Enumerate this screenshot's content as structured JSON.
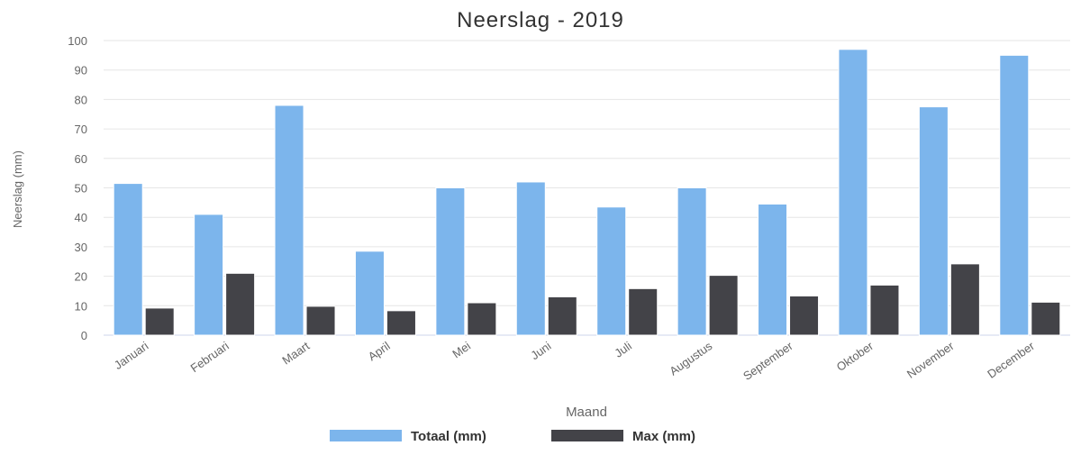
{
  "chart_data": {
    "type": "bar",
    "title": "Neerslag - 2019",
    "xlabel": "Maand",
    "ylabel": "Neerslag (mm)",
    "ylim": [
      0,
      100
    ],
    "y_ticks": [
      0,
      10,
      20,
      30,
      40,
      50,
      60,
      70,
      80,
      90,
      100
    ],
    "grid": true,
    "legend_position": "bottom",
    "categories": [
      "Januari",
      "Februari",
      "Maart",
      "April",
      "Mei",
      "Juni",
      "Juli",
      "Augustus",
      "September",
      "Oktober",
      "November",
      "December"
    ],
    "series": [
      {
        "name": "Totaal (mm)",
        "color": "#7cb5ec",
        "values": [
          51.5,
          41,
          78,
          28.5,
          50,
          52,
          43.5,
          50,
          44.5,
          97,
          77.5,
          95
        ]
      },
      {
        "name": "Max (mm)",
        "color": "#434348",
        "values": [
          9.2,
          21,
          9.8,
          8.3,
          11,
          13,
          15.8,
          20.3,
          13.3,
          17,
          24.2,
          11.2
        ]
      }
    ]
  }
}
